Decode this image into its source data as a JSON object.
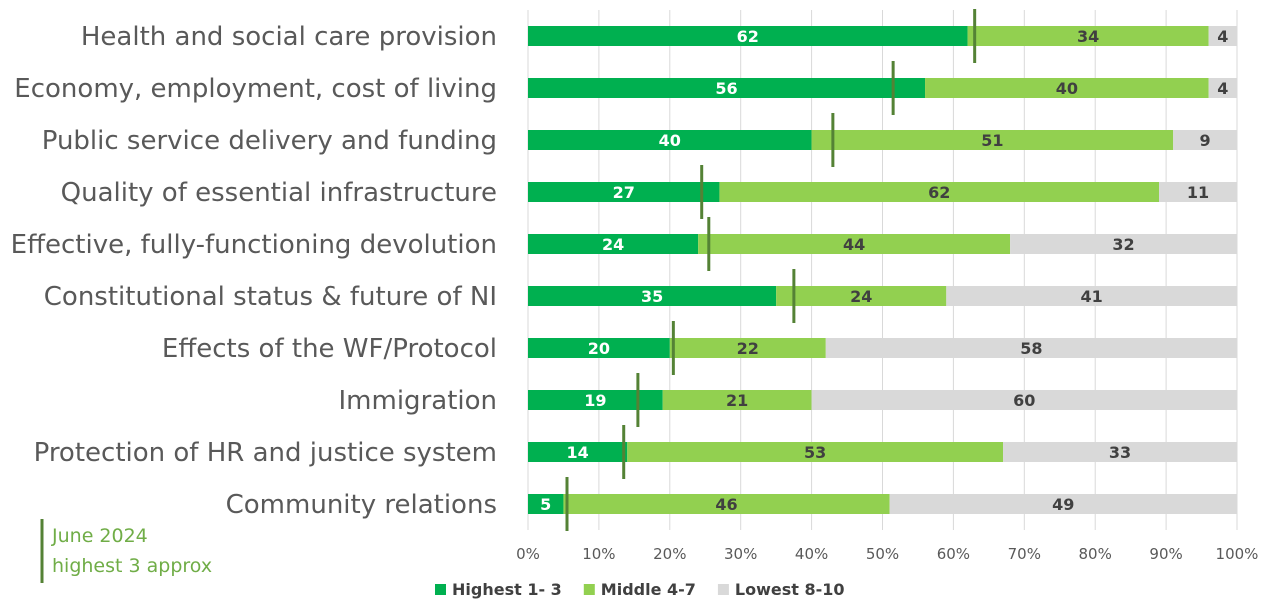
{
  "chart_data": {
    "type": "bar",
    "orientation": "horizontal",
    "stacked": true,
    "percent_axis": true,
    "categories": [
      "Health and social care provision",
      "Economy, employment, cost of living",
      "Public service delivery and funding",
      "Quality of essential infrastructure",
      "Effective, fully-functioning devolution",
      "Constitutional status & future of NI",
      "Effects of the WF/Protocol",
      "Immigration ",
      "Protection of HR and justice system",
      "Community relations"
    ],
    "series": [
      {
        "name": "Highest 1- 3",
        "color": "#00b050",
        "label_color": "#ffffff",
        "values": [
          62,
          56,
          40,
          27,
          24,
          35,
          20,
          19,
          14,
          5
        ]
      },
      {
        "name": "Middle 4-7",
        "color": "#92d050",
        "label_color": "#404040",
        "values": [
          34,
          40,
          51,
          62,
          44,
          24,
          22,
          21,
          53,
          46
        ]
      },
      {
        "name": "Lowest 8-10",
        "color": "#d9d9d9",
        "label_color": "#404040",
        "values": [
          4,
          4,
          9,
          11,
          32,
          41,
          58,
          60,
          33,
          49
        ]
      }
    ],
    "reference_markers": {
      "name": "June 2024 highest 3 approx",
      "color": "#548235",
      "values": [
        63,
        51.5,
        43,
        24.5,
        25.5,
        37.5,
        20.5,
        15.5,
        13.5,
        5.5
      ]
    },
    "xlim": [
      0,
      100
    ],
    "x_ticks": [
      "0%",
      "10%",
      "20%",
      "30%",
      "40%",
      "50%",
      "60%",
      "70%",
      "80%",
      "90%",
      "100%"
    ],
    "grid": true,
    "legend_position": "bottom",
    "title": "",
    "xlabel": "",
    "ylabel": ""
  },
  "note": {
    "line1": "June 2024",
    "line2": "highest 3 approx",
    "color": "#70ad47",
    "marker_color": "#548235"
  }
}
